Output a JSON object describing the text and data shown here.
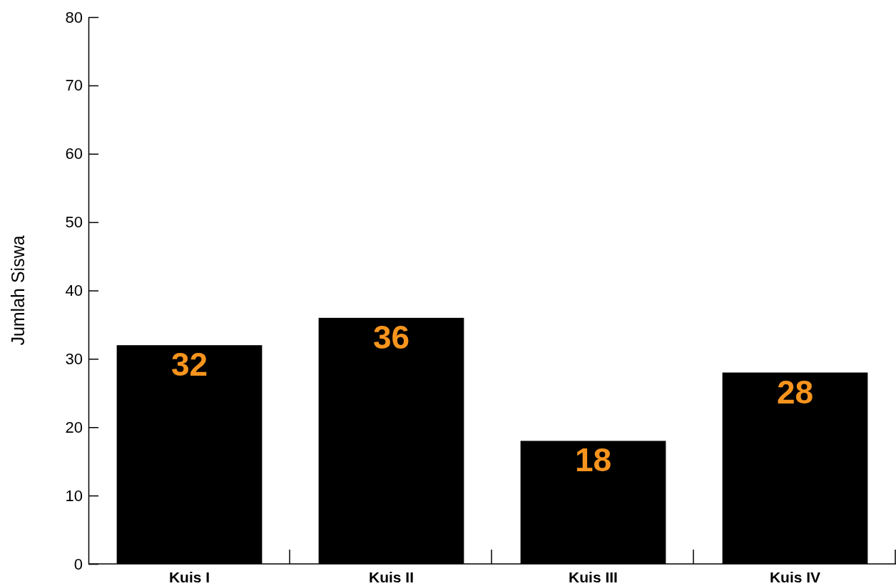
{
  "chart_data": {
    "type": "bar",
    "ylabel": "Jumlah Siswa",
    "categories": [
      "Kuis I",
      "Kuis II",
      "Kuis III",
      "Kuis IV"
    ],
    "values": [
      32,
      36,
      18,
      28
    ],
    "color": "#000000",
    "ylim": [
      0,
      80
    ],
    "yticks": [
      0,
      10,
      20,
      30,
      40,
      50,
      60,
      70,
      80
    ],
    "data_labels": true,
    "grid": false
  }
}
